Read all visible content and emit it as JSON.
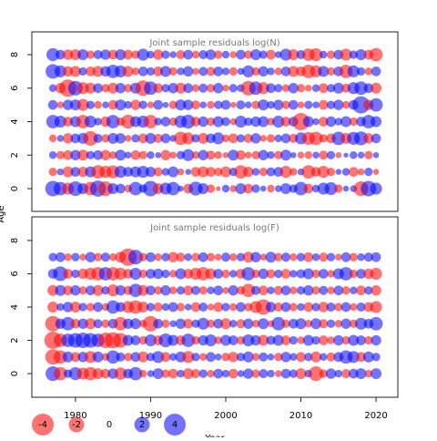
{
  "chart_data": [
    {
      "type": "bubble",
      "title": "Joint sample residuals log(N)",
      "ylabel": "Age",
      "pos_color": "#0000ff",
      "neg_color": "#ff0000",
      "x": [
        1977,
        1978,
        1979,
        1980,
        1981,
        1982,
        1983,
        1984,
        1985,
        1986,
        1987,
        1988,
        1989,
        1990,
        1991,
        1992,
        1993,
        1994,
        1995,
        1996,
        1997,
        1998,
        1999,
        2000,
        2001,
        2002,
        2003,
        2004,
        2005,
        2006,
        2007,
        2008,
        2009,
        2010,
        2011,
        2012,
        2013,
        2014,
        2015,
        2016,
        2017,
        2018,
        2019,
        2020
      ],
      "ages": [
        0,
        1,
        2,
        3,
        4,
        5,
        6,
        7,
        8
      ],
      "values": [
        [
          2.0,
          1.5,
          -1.2,
          1.8,
          1.0,
          -1.5,
          2.2,
          -1.8,
          1.0,
          0.8,
          -0.5,
          1.5,
          0.6,
          2.0,
          -1.0,
          1.2,
          1.5,
          0.3,
          -0.8,
          1.6,
          1.0,
          -0.6,
          -0.2,
          0.5,
          -0.4,
          1.0,
          -0.8,
          0.6,
          0.3,
          -0.5,
          0.4,
          1.0,
          0.6,
          1.5,
          -0.8,
          0.5,
          1.2,
          1.4,
          -0.6,
          0.3,
          0.4,
          -1.8,
          2.0,
          1.2
        ],
        [
          -0.6,
          0.4,
          -1.0,
          0.8,
          -0.9,
          1.0,
          -1.5,
          -1.2,
          -1.4,
          1.2,
          0.8,
          1.0,
          1.2,
          0.9,
          -0.7,
          0.5,
          1.0,
          -0.4,
          0.3,
          -0.8,
          -1.0,
          -0.8,
          -0.6,
          -1.0,
          0.6,
          -1.5,
          -0.9,
          0.5,
          -0.6,
          0.7,
          0.8,
          -1.2,
          -0.5,
          0.4,
          -1.5,
          -0.8,
          -1.2,
          -0.6,
          0.3,
          0.5,
          -0.8,
          -0.4,
          0.6,
          -0.3
        ],
        [
          0.5,
          -0.6,
          -0.8,
          0.9,
          -1.0,
          0.6,
          0.8,
          -0.9,
          -0.5,
          1.0,
          0.4,
          -0.8,
          -0.6,
          0.5,
          0.3,
          -0.9,
          -0.4,
          0.6,
          1.2,
          -0.5,
          0.9,
          -0.7,
          -0.5,
          -0.3,
          1.0,
          -0.8,
          -0.4,
          -0.6,
          0.9,
          0.5,
          -0.6,
          1.0,
          0.3,
          -0.4,
          -0.5,
          0.4,
          -0.7,
          0.6,
          -0.3,
          0.2,
          0.5,
          0.4,
          -0.6,
          0.3
        ],
        [
          -0.5,
          0.4,
          -0.9,
          0.8,
          1.0,
          -1.8,
          0.7,
          -0.6,
          1.0,
          0.9,
          -0.4,
          0.6,
          -0.8,
          1.0,
          -0.7,
          0.8,
          0.4,
          -1.5,
          -1.2,
          0.6,
          -1.0,
          0.8,
          1.2,
          -0.5,
          -0.8,
          0.6,
          -0.7,
          0.9,
          -0.4,
          -0.6,
          0.5,
          0.8,
          -0.7,
          1.2,
          -1.4,
          -1.5,
          -0.6,
          -0.8,
          1.5,
          -1.0,
          1.4,
          1.6,
          -0.9,
          0.8
        ],
        [
          1.5,
          1.2,
          -0.8,
          1.0,
          -1.5,
          1.2,
          0.5,
          -0.9,
          1.5,
          -0.6,
          -1.6,
          1.0,
          1.2,
          -1.5,
          0.5,
          0.8,
          -0.6,
          1.3,
          1.6,
          -0.8,
          0.9,
          -0.6,
          1.0,
          0.7,
          -0.4,
          1.2,
          0.6,
          0.9,
          1.0,
          -0.5,
          1.2,
          -0.8,
          0.8,
          -2.5,
          1.0,
          0.4,
          -0.8,
          0.9,
          0.5,
          1.0,
          -0.6,
          0.8,
          1.5,
          1.0
        ],
        [
          0.8,
          -0.4,
          0.9,
          1.0,
          -1.2,
          0.6,
          -0.5,
          0.4,
          -0.8,
          1.0,
          0.5,
          -0.9,
          0.6,
          -0.4,
          0.8,
          0.3,
          -0.6,
          1.0,
          0.9,
          -0.7,
          0.4,
          -0.5,
          0.6,
          0.8,
          -0.3,
          0.7,
          0.4,
          -0.6,
          1.0,
          0.5,
          0.9,
          -0.6,
          0.8,
          -0.4,
          0.6,
          0.4,
          -0.8,
          0.6,
          0.9,
          -0.5,
          0.8,
          2.5,
          -0.9,
          1.5
        ],
        [
          0.5,
          -0.9,
          -2.5,
          1.8,
          -1.2,
          -1.0,
          0.8,
          -0.6,
          -1.0,
          0.9,
          -0.6,
          1.0,
          -2.0,
          1.5,
          -0.8,
          0.6,
          0.9,
          -1.0,
          0.8,
          -0.5,
          0.7,
          -0.6,
          0.9,
          -0.4,
          0.6,
          0.5,
          -1.8,
          1.5,
          -1.2,
          0.8,
          0.6,
          -0.5,
          0.9,
          -0.6,
          -0.4,
          0.5,
          -0.8,
          0.6,
          1.0,
          -0.7,
          1.2,
          1.5,
          0.8,
          -1.0
        ],
        [
          1.8,
          1.2,
          -0.9,
          -1.0,
          0.6,
          -0.8,
          -1.0,
          0.9,
          1.5,
          1.2,
          -1.0,
          -0.5,
          0.8,
          0.6,
          -0.8,
          1.0,
          -0.6,
          0.5,
          0.9,
          -0.4,
          0.7,
          -0.7,
          0.8,
          0.5,
          -0.6,
          0.4,
          1.2,
          -0.6,
          0.9,
          0.5,
          -0.5,
          0.8,
          -1.0,
          -0.8,
          -1.5,
          -1.2,
          1.0,
          -0.6,
          0.8,
          -1.5,
          1.2,
          0.6,
          -0.5,
          0.8
        ],
        [
          1.4,
          0.8,
          -0.9,
          -1.0,
          1.0,
          -0.6,
          0.7,
          0.9,
          -0.8,
          1.0,
          -0.8,
          -0.6,
          1.2,
          0.5,
          -0.9,
          0.6,
          0.4,
          -0.7,
          0.8,
          -0.5,
          0.7,
          0.9,
          -0.6,
          0.5,
          -0.4,
          0.8,
          -0.6,
          1.0,
          0.6,
          -0.8,
          0.4,
          1.2,
          -1.0,
          0.7,
          -1.3,
          -1.4,
          0.5,
          -0.6,
          0.8,
          -1.2,
          0.6,
          1.0,
          -0.8,
          -1.5
        ]
      ],
      "xlim": [
        1974.2,
        2022.9
      ],
      "ylim": [
        -1.36,
        9.36
      ],
      "yticks": [
        0,
        2,
        4,
        6,
        8
      ]
    },
    {
      "type": "bubble",
      "title": "Joint sample residuals log(F)",
      "xlabel": "Year",
      "pos_color": "#0000ff",
      "neg_color": "#ff0000",
      "x": [
        1977,
        1978,
        1979,
        1980,
        1981,
        1982,
        1983,
        1984,
        1985,
        1986,
        1987,
        1988,
        1989,
        1990,
        1991,
        1992,
        1993,
        1994,
        1995,
        1996,
        1997,
        1998,
        1999,
        2000,
        2001,
        2002,
        2003,
        2004,
        2005,
        2006,
        2007,
        2008,
        2009,
        2010,
        2011,
        2012,
        2013,
        2014,
        2015,
        2016,
        2017,
        2018,
        2019,
        2020
      ],
      "ages": [
        0,
        1,
        2,
        3,
        4,
        5,
        6,
        7
      ],
      "values": [
        [
          1.8,
          -1.5,
          0.6,
          1.4,
          -1.2,
          -1.5,
          -1.0,
          -0.8,
          0.9,
          -1.3,
          0.8,
          1.5,
          -0.5,
          0.4,
          1.0,
          -0.6,
          -0.8,
          0.5,
          -1.0,
          -0.7,
          0.6,
          -0.5,
          0.8,
          0.5,
          -0.8,
          0.4,
          0.9,
          -0.6,
          0.7,
          0.5,
          -0.4,
          0.8,
          0.6,
          -1.0,
          0.5,
          -1.8,
          -0.6,
          0.9,
          0.5,
          -0.7,
          0.8,
          1.0,
          -0.5,
          1.0
        ],
        [
          -2.0,
          -1.5,
          1.0,
          -0.8,
          0.9,
          -1.2,
          1.0,
          -0.5,
          1.5,
          0.7,
          -0.6,
          0.8,
          -1.0,
          0.6,
          1.2,
          -0.8,
          0.5,
          1.0,
          -1.2,
          0.6,
          -0.5,
          0.8,
          0.4,
          -0.6,
          -0.9,
          0.6,
          1.0,
          -0.5,
          0.7,
          0.4,
          -0.6,
          0.9,
          0.5,
          -0.8,
          0.6,
          -1.0,
          0.5,
          -0.7,
          0.8,
          1.5,
          1.2,
          -0.8,
          1.0,
          0.6
        ],
        [
          -2.5,
          -1.5,
          1.5,
          1.8,
          2.0,
          1.8,
          1.5,
          -2.0,
          -2.2,
          -1.8,
          1.0,
          0.8,
          -0.6,
          1.2,
          -0.8,
          1.6,
          1.0,
          -0.8,
          1.5,
          -0.6,
          0.9,
          1.2,
          -0.5,
          1.0,
          0.8,
          -0.6,
          1.2,
          0.9,
          -1.0,
          0.7,
          1.0,
          -0.8,
          0.6,
          -0.5,
          1.0,
          0.6,
          -0.8,
          -0.5,
          0.9,
          -0.6,
          1.0,
          0.8,
          -0.6,
          0.9
        ],
        [
          -2.0,
          0.9,
          1.5,
          -0.8,
          0.9,
          -1.0,
          0.7,
          -0.6,
          0.8,
          -1.5,
          0.9,
          1.0,
          -0.5,
          -2.0,
          0.8,
          -0.6,
          0.4,
          0.9,
          -0.8,
          0.6,
          1.2,
          -0.6,
          0.8,
          -1.0,
          0.5,
          -0.7,
          0.9,
          -0.5,
          1.0,
          -0.4,
          1.5,
          -0.6,
          0.8,
          1.0,
          -0.5,
          1.0,
          -0.7,
          0.6,
          -0.5,
          0.9,
          -0.6,
          1.2,
          0.8,
          1.5
        ],
        [
          -1.0,
          0.5,
          0.9,
          -1.0,
          0.6,
          -0.6,
          0.8,
          -0.5,
          1.5,
          0.8,
          -1.2,
          -1.5,
          -1.0,
          0.6,
          -0.7,
          0.5,
          0.8,
          -0.6,
          0.4,
          -0.8,
          0.7,
          -0.4,
          -0.8,
          0.6,
          -0.5,
          0.8,
          -0.6,
          -1.2,
          -2.0,
          0.9,
          -0.7,
          0.8,
          -0.6,
          0.5,
          -0.8,
          0.6,
          -0.9,
          0.7,
          -0.6,
          0.8,
          -0.5,
          0.7,
          -0.8,
          -1.2
        ],
        [
          -1.0,
          1.0,
          -0.8,
          0.9,
          -0.6,
          0.8,
          -1.0,
          0.6,
          -1.2,
          0.9,
          -0.7,
          1.5,
          -1.0,
          0.8,
          -0.6,
          0.9,
          -0.5,
          0.6,
          -0.8,
          0.7,
          -0.6,
          0.5,
          0.8,
          -0.4,
          0.9,
          -0.6,
          -1.5,
          0.7,
          -0.8,
          0.5,
          -0.7,
          0.8,
          -0.5,
          0.6,
          0.9,
          -0.6,
          0.7,
          -0.5,
          0.8,
          -0.6,
          0.5,
          -0.8,
          0.6,
          -0.9
        ],
        [
          0.8,
          1.8,
          -0.8,
          0.6,
          -0.9,
          -1.2,
          -1.5,
          1.5,
          -1.5,
          -1.2,
          -0.8,
          1.2,
          -0.6,
          0.8,
          0.9,
          0.6,
          -0.5,
          1.0,
          -0.8,
          -1.2,
          -1.5,
          -1.0,
          0.8,
          -0.6,
          0.5,
          -0.8,
          1.5,
          -0.6,
          0.9,
          -0.7,
          0.6,
          -0.8,
          0.5,
          0.7,
          1.0,
          -0.6,
          0.8,
          -0.5,
          1.0,
          1.5,
          -0.6,
          0.8,
          -0.9,
          -1.2
        ],
        [
          0.6,
          0.8,
          -0.5,
          0.6,
          -0.4,
          0.9,
          -0.6,
          0.7,
          -0.5,
          -1.0,
          -2.5,
          1.8,
          -0.6,
          0.8,
          -0.5,
          0.6,
          -0.9,
          -0.7,
          0.5,
          -0.6,
          0.8,
          -0.6,
          -0.4,
          0.7,
          -0.5,
          0.6,
          -1.0,
          0.9,
          -0.4,
          1.0,
          -0.6,
          0.7,
          -0.5,
          0.6,
          -0.8,
          0.5,
          -0.7,
          0.6,
          -0.4,
          0.8,
          -0.6,
          0.5,
          0.7,
          0.8
        ]
      ],
      "xlim": [
        1974.2,
        2022.9
      ],
      "ylim": [
        -1.42,
        9.42
      ],
      "yticks": [
        0,
        2,
        4,
        6,
        8
      ],
      "xticks": [
        1980,
        1990,
        2000,
        2010,
        2020
      ]
    }
  ],
  "legend": {
    "values": [
      -4,
      -2,
      0,
      2,
      4
    ]
  }
}
